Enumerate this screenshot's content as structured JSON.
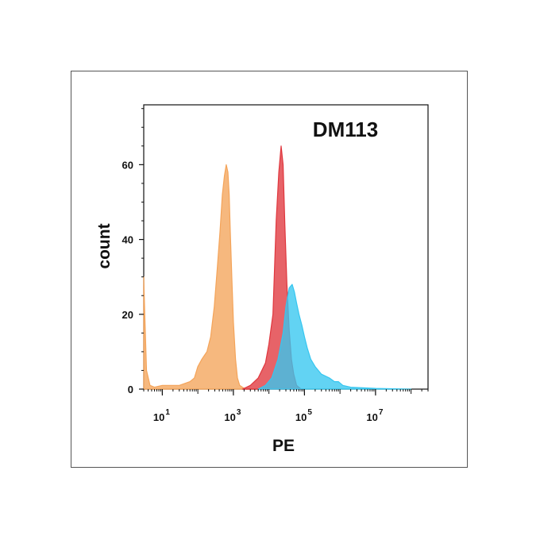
{
  "chart_data": {
    "type": "area",
    "title": "DM113",
    "xlabel": "PE",
    "ylabel": "count",
    "x_scale": "log10",
    "xlim": [
      3,
      300000000
    ],
    "ylim": [
      0,
      76
    ],
    "y_ticks": [
      0,
      20,
      40,
      60
    ],
    "x_ticks": [
      {
        "value": 10,
        "base": "10",
        "exp": "1"
      },
      {
        "value": 1000,
        "base": "10",
        "exp": "3"
      },
      {
        "value": 100000,
        "base": "10",
        "exp": "5"
      },
      {
        "value": 10000000,
        "base": "10",
        "exp": "7"
      }
    ],
    "grid": false,
    "series": [
      {
        "color": "#f4a45a",
        "x": [
          3,
          3.2,
          3.6,
          4.5,
          6,
          10,
          30,
          60,
          80,
          100,
          130,
          180,
          230,
          290,
          350,
          420,
          490,
          560,
          630,
          700,
          760,
          820,
          900,
          1000,
          1150,
          1300,
          1500,
          1800,
          2200,
          2800,
          5000,
          100000000
        ],
        "y": [
          30,
          20,
          5,
          1,
          0.5,
          1,
          1,
          2,
          3,
          6,
          8,
          10,
          14,
          22,
          32,
          42,
          52,
          57,
          60,
          58,
          52,
          42,
          30,
          18,
          8,
          3,
          1,
          0.5,
          0,
          0,
          0,
          0
        ]
      },
      {
        "color": "#e0373e",
        "x": [
          1800,
          3000,
          5000,
          8000,
          10000,
          13000,
          16000,
          19000,
          22000,
          25000,
          28000,
          32000,
          37000,
          43000,
          50000,
          60000,
          80000,
          100000
        ],
        "y": [
          0,
          1,
          3,
          7,
          12,
          20,
          45,
          58,
          65,
          60,
          44,
          28,
          16,
          8,
          4,
          1,
          0,
          0
        ]
      },
      {
        "color": "#36c6f0",
        "x": [
          5000,
          8000,
          12000,
          18000,
          25000,
          30000,
          37000,
          45000,
          52000,
          60000,
          70000,
          85000,
          100000,
          120000,
          150000,
          200000,
          300000,
          500000,
          700000,
          900000,
          1200000,
          2000000,
          10000000,
          100000000
        ],
        "y": [
          0,
          1,
          3,
          8,
          15,
          22,
          27,
          28,
          26,
          23,
          20,
          17,
          14,
          11,
          8,
          6,
          4,
          3,
          2,
          2,
          1,
          0.5,
          0.2,
          0
        ]
      }
    ]
  }
}
